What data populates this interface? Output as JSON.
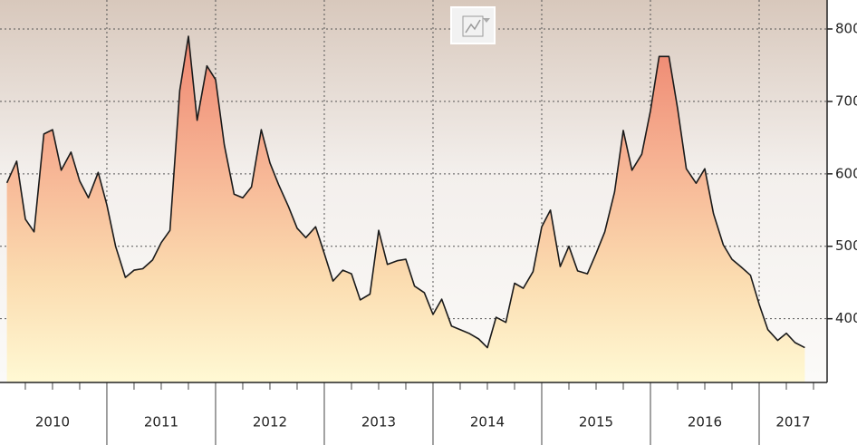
{
  "chart_data": {
    "type": "area",
    "x": [
      2010.08,
      2010.17,
      2010.25,
      2010.33,
      2010.42,
      2010.5,
      2010.58,
      2010.67,
      2010.75,
      2010.83,
      2010.92,
      2011,
      2011.08,
      2011.17,
      2011.25,
      2011.33,
      2011.42,
      2011.5,
      2011.58,
      2011.67,
      2011.75,
      2011.83,
      2011.92,
      2012,
      2012.08,
      2012.17,
      2012.25,
      2012.33,
      2012.42,
      2012.5,
      2012.58,
      2012.67,
      2012.75,
      2012.83,
      2012.92,
      2013,
      2013.08,
      2013.17,
      2013.25,
      2013.33,
      2013.42,
      2013.5,
      2013.58,
      2013.67,
      2013.75,
      2013.83,
      2013.92,
      2014,
      2014.08,
      2014.17,
      2014.25,
      2014.33,
      2014.42,
      2014.5,
      2014.58,
      2014.67,
      2014.75,
      2014.83,
      2014.92,
      2015,
      2015.08,
      2015.17,
      2015.25,
      2015.33,
      2015.42,
      2015.5,
      2015.58,
      2015.67,
      2015.75,
      2015.83,
      2015.92,
      2016,
      2016.08,
      2016.17,
      2016.25,
      2016.33,
      2016.42,
      2016.5,
      2016.58,
      2016.67,
      2016.75,
      2016.83,
      2016.92,
      2017,
      2017.08,
      2017.17,
      2017.25,
      2017.33,
      2017.42
    ],
    "values": [
      587.5,
      617.5,
      537.5,
      520,
      655,
      661,
      605,
      630,
      590,
      567,
      602,
      557,
      500,
      457,
      467,
      469,
      481,
      505,
      522,
      715,
      790,
      674,
      749,
      730,
      640,
      572,
      567,
      582,
      661,
      615,
      585,
      555,
      525,
      512,
      527,
      490,
      452,
      467,
      462,
      426,
      434,
      522,
      475,
      480,
      482,
      445,
      436,
      406,
      427,
      390,
      385,
      380,
      372,
      360,
      402,
      395,
      449,
      442,
      465,
      527,
      550,
      472,
      500,
      466,
      462,
      490,
      520,
      575,
      660,
      605,
      627,
      687,
      762,
      762,
      690,
      607,
      587,
      607,
      545,
      502,
      482,
      472,
      460,
      420,
      385,
      370,
      380,
      367,
      360
    ],
    "color": "#1a1a1a",
    "xlim": [
      2010.017,
      2017.625
    ],
    "xticks": [
      2011,
      2012,
      2013,
      2014,
      2015,
      2016,
      2017
    ],
    "year_labels": [
      "2010",
      "2011",
      "2012",
      "2013",
      "2014",
      "2015",
      "2016",
      "2017"
    ],
    "ylim": [
      312,
      840
    ],
    "yticks": [
      400,
      500,
      600,
      700,
      800
    ],
    "grid": true
  }
}
